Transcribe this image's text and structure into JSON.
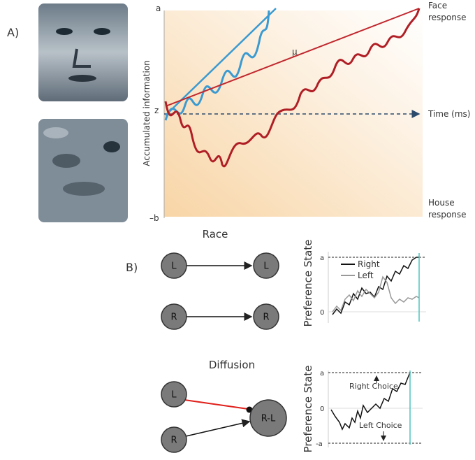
{
  "panel_a": {
    "label": "A)",
    "graph": {
      "top_bound": "a",
      "start_point": "z",
      "bottom_bound": "–b",
      "y_axis": "Accumulated information",
      "drift": "μ",
      "face_response": [
        "Face",
        "response"
      ],
      "time_axis": "Time (ms)",
      "house_response": [
        "House",
        "response"
      ]
    }
  },
  "panel_b": {
    "label": "B)",
    "race": {
      "title": "Race",
      "nodes": [
        "L",
        "L",
        "R",
        "R"
      ],
      "plot": {
        "y_axis": "Preference State",
        "ticks": [
          "a",
          "0"
        ],
        "legend": [
          "Right",
          "Left"
        ]
      }
    },
    "diffusion": {
      "title": "Diffusion",
      "nodes": [
        "L",
        "R",
        "R-L"
      ],
      "plot": {
        "y_axis": "Preference State",
        "ticks": [
          "a",
          "0",
          "-a"
        ],
        "right_choice": "Right Choice",
        "left_choice": "Left Choice"
      }
    }
  }
}
